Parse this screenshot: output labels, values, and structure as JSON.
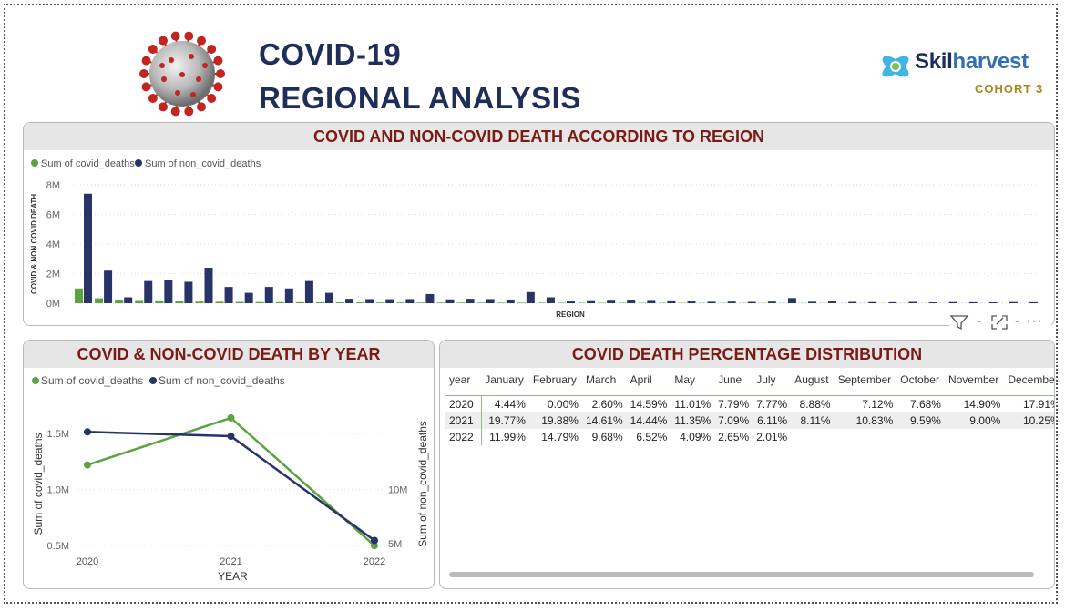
{
  "header": {
    "title_line1": "COVID-19",
    "title_line2": "REGIONAL ANALYSIS",
    "logo_text_a": "Skil",
    "logo_text_b": "harvest",
    "logo_subtitle": "COHORT 3",
    "logo_icon": "skilharvest-logo-icon",
    "virus_image": "coronavirus-image"
  },
  "colors": {
    "covid": "#5aa33d",
    "non_covid": "#283468",
    "title": "#7a1b14",
    "header": "#1f2d5a"
  },
  "toolbar": {
    "filter_icon": "filter-icon",
    "focus_icon": "focus-mode-icon",
    "more_icon": "more-options-icon",
    "sep1": "-",
    "sep2": "-",
    "more": "···"
  },
  "chart_data": [
    {
      "type": "bar",
      "title": "COVID AND NON-COVID DEATH ACCORDING TO REGION",
      "xlabel": "REGION",
      "ylabel": "COVID & NON COVID DEATH",
      "ylim": [
        0,
        8000000
      ],
      "yticks": [
        "0M",
        "2M",
        "4M",
        "6M",
        "8M"
      ],
      "yticks_values": [
        0,
        2000000,
        4000000,
        6000000,
        8000000
      ],
      "legend_position": "top-left",
      "categories": [
        "",
        "",
        "",
        "",
        "",
        "",
        "",
        "",
        "",
        "",
        "",
        "",
        "",
        "",
        "",
        "",
        "",
        "",
        "",
        "",
        "",
        "",
        "",
        "",
        "",
        "",
        "",
        "",
        "",
        "",
        "",
        "",
        "",
        "",
        "",
        "",
        "",
        "",
        "",
        "",
        "",
        "",
        "",
        "",
        "",
        "",
        "",
        ""
      ],
      "series": [
        {
          "name": "Sum of covid_deaths",
          "values": [
            1000000,
            330000,
            200000,
            150000,
            130000,
            120000,
            110000,
            100000,
            90000,
            80000,
            75000,
            70000,
            65000,
            60000,
            55000,
            50000,
            48000,
            46000,
            44000,
            42000,
            40000,
            38000,
            36000,
            34000,
            32000,
            30000,
            28000,
            26000,
            24000,
            22000,
            20000,
            19000,
            18000,
            17000,
            16000,
            15000,
            14000,
            13000,
            12000,
            11000,
            10000,
            9000,
            8000,
            7000,
            6000,
            5000,
            4000,
            3000
          ]
        },
        {
          "name": "Sum of non_covid_deaths",
          "values": [
            7400000,
            2200000,
            400000,
            1500000,
            1550000,
            1450000,
            2400000,
            1100000,
            700000,
            1100000,
            1000000,
            1500000,
            700000,
            300000,
            280000,
            270000,
            280000,
            620000,
            260000,
            300000,
            280000,
            250000,
            750000,
            400000,
            120000,
            140000,
            170000,
            180000,
            160000,
            130000,
            120000,
            100000,
            110000,
            90000,
            110000,
            350000,
            100000,
            120000,
            90000,
            80000,
            70000,
            90000,
            60000,
            80000,
            70000,
            60000,
            80000,
            70000
          ]
        }
      ]
    },
    {
      "type": "line",
      "title": "COVID & NON-COVID DEATH BY YEAR",
      "xlabel": "YEAR",
      "ylabel": "Sum of covid_deaths",
      "ylabel2": "Sum of non_covid_deaths",
      "legend_position": "top-left",
      "categories": [
        "2020",
        "2021",
        "2022"
      ],
      "yticks": [
        "0.5M",
        "1.0M",
        "1.5M"
      ],
      "yticks_values": [
        500000,
        1000000,
        1500000
      ],
      "ylim": [
        420000,
        1680000
      ],
      "y2ticks": [
        "5M",
        "10M"
      ],
      "y2ticks_values": [
        5000000,
        10000000
      ],
      "y2lim": [
        4000000,
        17000000
      ],
      "series": [
        {
          "name": "Sum of covid_deaths",
          "axis": "left",
          "values": [
            1220000,
            1640000,
            500000
          ]
        },
        {
          "name": "Sum of non_covid_deaths",
          "axis": "right",
          "values": [
            15300000,
            14900000,
            5300000
          ]
        }
      ]
    },
    {
      "type": "table",
      "title": "COVID DEATH PERCENTAGE DISTRIBUTION",
      "columns": [
        "year",
        "January",
        "February",
        "March",
        "April",
        "May",
        "June",
        "July",
        "August",
        "September",
        "October",
        "November",
        "December"
      ],
      "rows": [
        [
          "2020",
          "4.44%",
          "0.00%",
          "2.60%",
          "14.59%",
          "11.01%",
          "7.79%",
          "7.77%",
          "8.88%",
          "7.12%",
          "7.68%",
          "14.90%",
          "17.91%"
        ],
        [
          "2021",
          "19.77%",
          "19.88%",
          "14.61%",
          "14.44%",
          "11.35%",
          "7.09%",
          "6.11%",
          "8.11%",
          "10.83%",
          "9.59%",
          "9.00%",
          "10.25%"
        ],
        [
          "2022",
          "11.99%",
          "14.79%",
          "9.68%",
          "6.52%",
          "4.09%",
          "2.65%",
          "2.01%",
          "",
          "",
          "",
          "",
          ""
        ]
      ]
    }
  ]
}
